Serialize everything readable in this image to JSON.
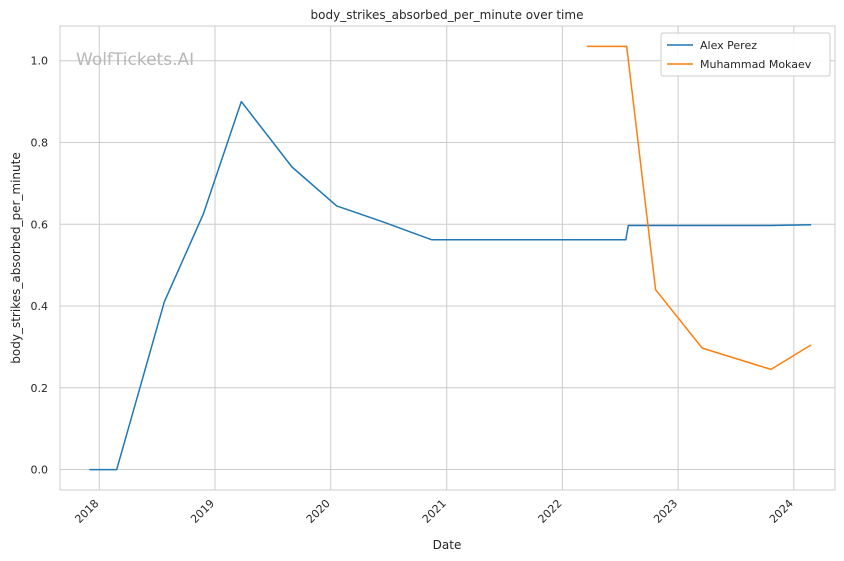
{
  "chart_data": {
    "type": "line",
    "title": "body_strikes_absorbed_per_minute over time",
    "xlabel": "Date",
    "ylabel": "body_strikes_absorbed_per_minute",
    "watermark": "WolfTickets.AI",
    "x_ticks": [
      "2018",
      "2019",
      "2020",
      "2021",
      "2022",
      "2023",
      "2024"
    ],
    "y_ticks": [
      "0.0",
      "0.2",
      "0.4",
      "0.6",
      "0.8",
      "1.0"
    ],
    "xlim": [
      "2017-08-30",
      "2024-05-10"
    ],
    "ylim": [
      -0.05,
      1.085
    ],
    "grid": true,
    "legend_position": "top-right",
    "series": [
      {
        "name": "Alex Perez",
        "color": "#1f77b4",
        "points": [
          [
            "2017-12-01",
            0.0
          ],
          [
            "2018-02-25",
            0.0
          ],
          [
            "2018-07-25",
            0.41
          ],
          [
            "2018-11-25",
            0.625
          ],
          [
            "2019-03-25",
            0.9
          ],
          [
            "2019-09-01",
            0.74
          ],
          [
            "2020-01-20",
            0.645
          ],
          [
            "2020-06-10",
            0.607
          ],
          [
            "2020-11-15",
            0.562
          ],
          [
            "2022-07-20",
            0.562
          ],
          [
            "2022-07-28",
            0.597
          ],
          [
            "2023-10-20",
            0.597
          ],
          [
            "2024-02-25",
            0.599
          ]
        ]
      },
      {
        "name": "Muhammad Mokaev",
        "color": "#ff7f0e",
        "points": [
          [
            "2022-03-19",
            1.035
          ],
          [
            "2022-07-23",
            1.035
          ],
          [
            "2022-10-22",
            0.44
          ],
          [
            "2023-03-18",
            0.297
          ],
          [
            "2023-10-21",
            0.245
          ],
          [
            "2024-02-25",
            0.305
          ]
        ]
      }
    ]
  }
}
